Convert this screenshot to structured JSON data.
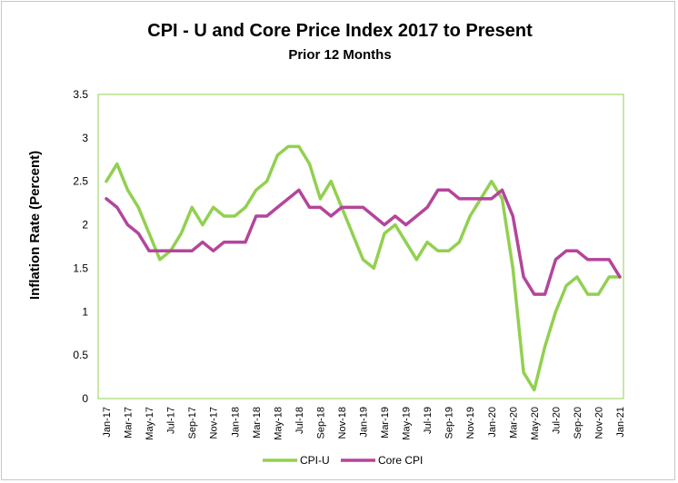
{
  "chart_data": {
    "type": "line",
    "title": "CPI - U and Core Price Index 2017 to Present",
    "subtitle": "Prior 12 Months",
    "ylabel": "Inflation Rate (Percent)",
    "xlabel": "",
    "ylim": [
      0,
      3.5
    ],
    "yticks": [
      "0",
      "0.5",
      "1",
      "1.5",
      "2",
      "2.5",
      "3",
      "3.5"
    ],
    "x": [
      "Jan-17",
      "Feb-17",
      "Mar-17",
      "Apr-17",
      "May-17",
      "Jun-17",
      "Jul-17",
      "Aug-17",
      "Sep-17",
      "Oct-17",
      "Nov-17",
      "Dec-17",
      "Jan-18",
      "Feb-18",
      "Mar-18",
      "Apr-18",
      "May-18",
      "Jun-18",
      "Jul-18",
      "Aug-18",
      "Sep-18",
      "Oct-18",
      "Nov-18",
      "Dec-18",
      "Jan-19",
      "Feb-19",
      "Mar-19",
      "Apr-19",
      "May-19",
      "Jun-19",
      "Jul-19",
      "Aug-19",
      "Sep-19",
      "Oct-19",
      "Nov-19",
      "Dec-19",
      "Jan-20",
      "Feb-20",
      "Mar-20",
      "Apr-20",
      "May-20",
      "Jun-20",
      "Jul-20",
      "Aug-20",
      "Sep-20",
      "Oct-20",
      "Nov-20",
      "Dec-20",
      "Jan-21"
    ],
    "xticks": [
      "Jan-17",
      "Mar-17",
      "May-17",
      "Jul-17",
      "Sep-17",
      "Nov-17",
      "Jan-18",
      "Mar-18",
      "May-18",
      "Jul-18",
      "Sep-18",
      "Nov-18",
      "Jan-19",
      "Mar-19",
      "May-19",
      "Jul-19",
      "Sep-19",
      "Nov-19",
      "Jan-20",
      "Mar-20",
      "May-20",
      "Jul-20",
      "Sep-20",
      "Nov-20",
      "Jan-21"
    ],
    "series": [
      {
        "name": "CPI-U",
        "color": "#92d050",
        "values": [
          2.5,
          2.7,
          2.4,
          2.2,
          1.9,
          1.6,
          1.7,
          1.9,
          2.2,
          2.0,
          2.2,
          2.1,
          2.1,
          2.2,
          2.4,
          2.5,
          2.8,
          2.9,
          2.9,
          2.7,
          2.3,
          2.5,
          2.2,
          1.9,
          1.6,
          1.5,
          1.9,
          2.0,
          1.8,
          1.6,
          1.8,
          1.7,
          1.7,
          1.8,
          2.1,
          2.3,
          2.5,
          2.3,
          1.5,
          0.3,
          0.1,
          0.6,
          1.0,
          1.3,
          1.4,
          1.2,
          1.2,
          1.4,
          1.4
        ]
      },
      {
        "name": "Core CPI",
        "color": "#b4459b",
        "values": [
          2.3,
          2.2,
          2.0,
          1.9,
          1.7,
          1.7,
          1.7,
          1.7,
          1.7,
          1.8,
          1.7,
          1.8,
          1.8,
          1.8,
          2.1,
          2.1,
          2.2,
          2.3,
          2.4,
          2.2,
          2.2,
          2.1,
          2.2,
          2.2,
          2.2,
          2.1,
          2.0,
          2.1,
          2.0,
          2.1,
          2.2,
          2.4,
          2.4,
          2.3,
          2.3,
          2.3,
          2.3,
          2.4,
          2.1,
          1.4,
          1.2,
          1.2,
          1.6,
          1.7,
          1.7,
          1.6,
          1.6,
          1.6,
          1.4
        ]
      }
    ],
    "grid": false,
    "legend": "bottom"
  }
}
